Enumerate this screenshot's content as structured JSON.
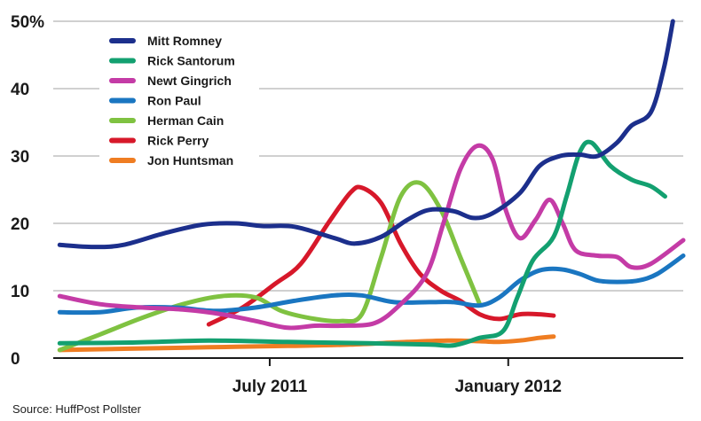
{
  "source": "Source: HuffPost Pollster",
  "chart_data": {
    "type": "line",
    "x_ticks": [
      {
        "value": "2011-07-01",
        "label": "July 2011"
      },
      {
        "value": "2012-01-01",
        "label": "January 2012"
      }
    ],
    "x_range": [
      "2011-01-15",
      "2012-05-15"
    ],
    "ylim": [
      0,
      50
    ],
    "y_ticks": [
      {
        "value": 0,
        "label": "0"
      },
      {
        "value": 10,
        "label": "10"
      },
      {
        "value": 20,
        "label": "20"
      },
      {
        "value": 30,
        "label": "30"
      },
      {
        "value": 40,
        "label": "40"
      },
      {
        "value": 50,
        "label": "50%"
      }
    ],
    "grid": "horizontal",
    "legend_position": "top-left",
    "series": [
      {
        "name": "Mitt Romney",
        "color": "#1c2f8c",
        "points": [
          [
            "2011-01-20",
            16.8
          ],
          [
            "2011-02-15",
            16.5
          ],
          [
            "2011-03-10",
            16.8
          ],
          [
            "2011-04-10",
            18.5
          ],
          [
            "2011-05-10",
            19.8
          ],
          [
            "2011-06-05",
            20.0
          ],
          [
            "2011-06-25",
            19.6
          ],
          [
            "2011-07-20",
            19.5
          ],
          [
            "2011-08-20",
            17.8
          ],
          [
            "2011-09-05",
            17.0
          ],
          [
            "2011-09-25",
            18.0
          ],
          [
            "2011-10-15",
            20.5
          ],
          [
            "2011-11-01",
            22.0
          ],
          [
            "2011-11-20",
            21.8
          ],
          [
            "2011-12-05",
            20.8
          ],
          [
            "2011-12-20",
            21.5
          ],
          [
            "2012-01-10",
            24.5
          ],
          [
            "2012-01-25",
            28.5
          ],
          [
            "2012-02-10",
            30.0
          ],
          [
            "2012-02-25",
            30.2
          ],
          [
            "2012-03-10",
            30.0
          ],
          [
            "2012-03-25",
            32.0
          ],
          [
            "2012-04-05",
            34.5
          ],
          [
            "2012-04-20",
            36.5
          ],
          [
            "2012-04-30",
            43.0
          ],
          [
            "2012-05-07",
            50.0
          ]
        ]
      },
      {
        "name": "Rick Santorum",
        "color": "#13a070",
        "points": [
          [
            "2011-01-20",
            2.2
          ],
          [
            "2011-03-15",
            2.3
          ],
          [
            "2011-05-15",
            2.6
          ],
          [
            "2011-07-15",
            2.4
          ],
          [
            "2011-09-15",
            2.2
          ],
          [
            "2011-11-01",
            2.0
          ],
          [
            "2011-11-20",
            1.9
          ],
          [
            "2011-12-10",
            3.0
          ],
          [
            "2011-12-28",
            4.0
          ],
          [
            "2012-01-08",
            9.0
          ],
          [
            "2012-01-20",
            14.5
          ],
          [
            "2012-02-05",
            18.0
          ],
          [
            "2012-02-15",
            24.0
          ],
          [
            "2012-02-25",
            30.5
          ],
          [
            "2012-03-05",
            32.0
          ],
          [
            "2012-03-20",
            28.5
          ],
          [
            "2012-04-05",
            26.5
          ],
          [
            "2012-04-20",
            25.5
          ],
          [
            "2012-05-01",
            24.0
          ]
        ]
      },
      {
        "name": "Newt Gingrich",
        "color": "#c43ba6",
        "points": [
          [
            "2011-01-20",
            9.2
          ],
          [
            "2011-02-20",
            8.0
          ],
          [
            "2011-03-25",
            7.5
          ],
          [
            "2011-04-25",
            7.2
          ],
          [
            "2011-05-25",
            6.5
          ],
          [
            "2011-06-20",
            5.5
          ],
          [
            "2011-07-15",
            4.5
          ],
          [
            "2011-08-05",
            4.8
          ],
          [
            "2011-08-25",
            4.8
          ],
          [
            "2011-09-20",
            5.2
          ],
          [
            "2011-10-10",
            8.0
          ],
          [
            "2011-10-30",
            12.5
          ],
          [
            "2011-11-12",
            20.0
          ],
          [
            "2011-11-25",
            28.0
          ],
          [
            "2011-12-08",
            31.5
          ],
          [
            "2011-12-20",
            29.5
          ],
          [
            "2011-12-30",
            22.0
          ],
          [
            "2012-01-10",
            17.8
          ],
          [
            "2012-01-22",
            20.5
          ],
          [
            "2012-02-02",
            23.5
          ],
          [
            "2012-02-12",
            20.0
          ],
          [
            "2012-02-22",
            16.0
          ],
          [
            "2012-03-10",
            15.2
          ],
          [
            "2012-03-25",
            15.0
          ],
          [
            "2012-04-05",
            13.5
          ],
          [
            "2012-04-20",
            14.0
          ],
          [
            "2012-05-15",
            17.5
          ]
        ]
      },
      {
        "name": "Ron Paul",
        "color": "#1a76c1",
        "points": [
          [
            "2011-01-20",
            6.8
          ],
          [
            "2011-02-20",
            6.8
          ],
          [
            "2011-03-20",
            7.5
          ],
          [
            "2011-04-20",
            7.5
          ],
          [
            "2011-05-20",
            7.0
          ],
          [
            "2011-06-20",
            7.5
          ],
          [
            "2011-07-20",
            8.5
          ],
          [
            "2011-08-20",
            9.3
          ],
          [
            "2011-09-10",
            9.3
          ],
          [
            "2011-10-05",
            8.3
          ],
          [
            "2011-11-01",
            8.3
          ],
          [
            "2011-11-20",
            8.3
          ],
          [
            "2011-12-10",
            7.8
          ],
          [
            "2011-12-25",
            9.0
          ],
          [
            "2012-01-10",
            11.5
          ],
          [
            "2012-01-25",
            13.0
          ],
          [
            "2012-02-10",
            13.2
          ],
          [
            "2012-02-25",
            12.5
          ],
          [
            "2012-03-10",
            11.5
          ],
          [
            "2012-03-25",
            11.3
          ],
          [
            "2012-04-10",
            11.5
          ],
          [
            "2012-04-25",
            12.5
          ],
          [
            "2012-05-15",
            15.2
          ]
        ]
      },
      {
        "name": "Herman Cain",
        "color": "#7fc241",
        "points": [
          [
            "2011-01-20",
            1.2
          ],
          [
            "2011-02-20",
            3.5
          ],
          [
            "2011-03-25",
            6.0
          ],
          [
            "2011-04-25",
            8.0
          ],
          [
            "2011-05-25",
            9.2
          ],
          [
            "2011-06-20",
            9.0
          ],
          [
            "2011-07-10",
            7.0
          ],
          [
            "2011-08-05",
            5.8
          ],
          [
            "2011-08-25",
            5.5
          ],
          [
            "2011-09-10",
            6.5
          ],
          [
            "2011-09-25",
            15.0
          ],
          [
            "2011-10-10",
            24.0
          ],
          [
            "2011-10-25",
            26.0
          ],
          [
            "2011-11-10",
            22.0
          ],
          [
            "2011-11-25",
            15.0
          ],
          [
            "2011-12-10",
            8.0
          ]
        ]
      },
      {
        "name": "Rick Perry",
        "color": "#d7182a",
        "points": [
          [
            "2011-05-15",
            5.0
          ],
          [
            "2011-06-10",
            7.5
          ],
          [
            "2011-07-05",
            11.0
          ],
          [
            "2011-07-25",
            14.0
          ],
          [
            "2011-08-15",
            20.0
          ],
          [
            "2011-09-01",
            24.5
          ],
          [
            "2011-09-10",
            25.3
          ],
          [
            "2011-09-25",
            23.0
          ],
          [
            "2011-10-10",
            17.0
          ],
          [
            "2011-10-25",
            12.5
          ],
          [
            "2011-11-10",
            10.0
          ],
          [
            "2011-11-25",
            8.5
          ],
          [
            "2011-12-10",
            6.5
          ],
          [
            "2011-12-25",
            5.8
          ],
          [
            "2012-01-10",
            6.5
          ],
          [
            "2012-01-25",
            6.5
          ],
          [
            "2012-02-05",
            6.3
          ]
        ]
      },
      {
        "name": "Jon Huntsman",
        "color": "#ef7d22",
        "points": [
          [
            "2011-01-20",
            1.2
          ],
          [
            "2011-03-15",
            1.4
          ],
          [
            "2011-05-15",
            1.6
          ],
          [
            "2011-07-15",
            1.8
          ],
          [
            "2011-09-01",
            2.0
          ],
          [
            "2011-10-15",
            2.4
          ],
          [
            "2011-11-15",
            2.6
          ],
          [
            "2011-12-10",
            2.5
          ],
          [
            "2011-12-25",
            2.4
          ],
          [
            "2012-01-10",
            2.6
          ],
          [
            "2012-01-25",
            3.0
          ],
          [
            "2012-02-05",
            3.2
          ]
        ]
      }
    ]
  }
}
